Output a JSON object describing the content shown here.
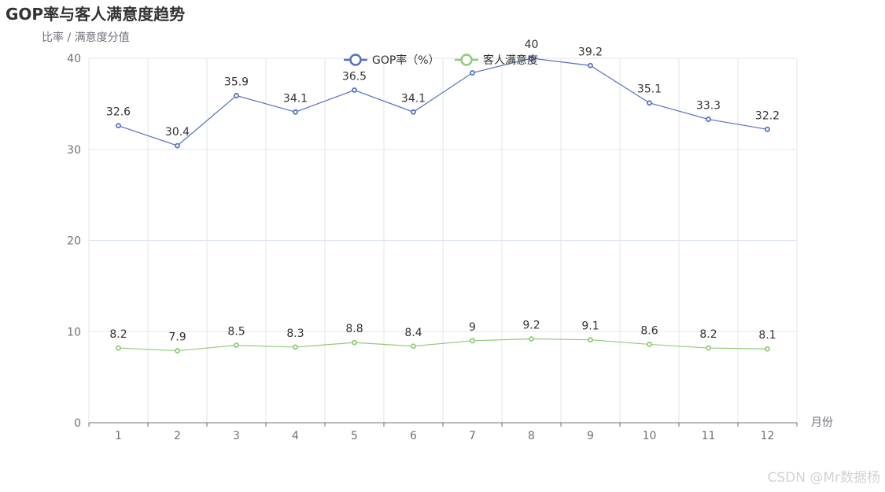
{
  "chart_data": {
    "type": "line",
    "title": "GOP率与客人满意度趋势",
    "ylabel": "比率 / 满意度分值",
    "xlabel": "月份",
    "categories": [
      "1",
      "2",
      "3",
      "4",
      "5",
      "6",
      "7",
      "8",
      "9",
      "10",
      "11",
      "12"
    ],
    "ylim": [
      0,
      40
    ],
    "yticks": [
      0,
      10,
      20,
      30,
      40
    ],
    "grid": true,
    "legend_position": "top-center",
    "series": [
      {
        "name": "GOP率（%）",
        "color": "#5470c6",
        "values": [
          32.6,
          30.4,
          35.9,
          34.1,
          36.5,
          34.1,
          38.4,
          40,
          39.2,
          35.1,
          33.3,
          32.2
        ],
        "labels": [
          "32.6",
          "30.4",
          "35.9",
          "34.1",
          "36.5",
          "34.1",
          "",
          "40",
          "39.2",
          "35.1",
          "33.3",
          "32.2"
        ]
      },
      {
        "name": "客人满意度",
        "color": "#91cc75",
        "values": [
          8.2,
          7.9,
          8.5,
          8.3,
          8.8,
          8.4,
          9,
          9.2,
          9.1,
          8.6,
          8.2,
          8.1
        ],
        "labels": [
          "8.2",
          "7.9",
          "8.5",
          "8.3",
          "8.8",
          "8.4",
          "9",
          "9.2",
          "9.1",
          "8.6",
          "8.2",
          "8.1"
        ]
      }
    ]
  },
  "watermark": "CSDN @Mr数据杨"
}
